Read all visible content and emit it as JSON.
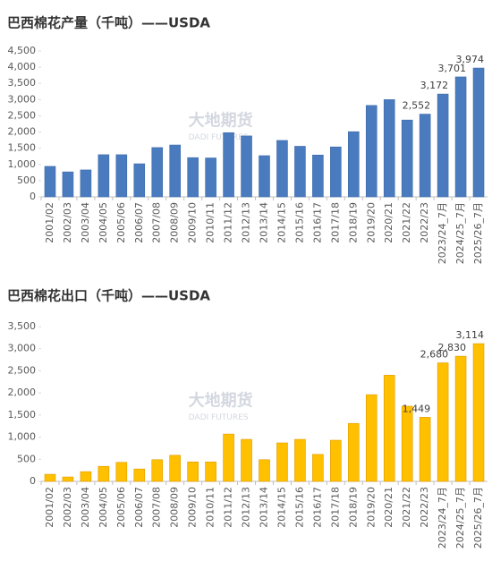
{
  "chart_data": [
    {
      "type": "bar",
      "title": "巴西棉花产量（千吨）——USDA",
      "watermark": "大地期货",
      "watermark_sub": "DADI FUTURES",
      "categories": [
        "2001/02",
        "2002/03",
        "2003/04",
        "2004/05",
        "2005/06",
        "2006/07",
        "2007/08",
        "2008/09",
        "2009/10",
        "2010/11",
        "2011/12",
        "2012/13",
        "2013/14",
        "2014/15",
        "2015/16",
        "2016/17",
        "2017/18",
        "2018/19",
        "2019/20",
        "2020/21",
        "2021/22",
        "2022/23",
        "2023/24_7月",
        "2024/25_7月",
        "2025/26_7月"
      ],
      "values": [
        940,
        770,
        830,
        1300,
        1300,
        1020,
        1520,
        1600,
        1210,
        1200,
        1980,
        1880,
        1270,
        1740,
        1560,
        1290,
        1540,
        2010,
        2820,
        3000,
        2370,
        2552,
        3172,
        3701,
        3974
      ],
      "value_labels": [
        null,
        null,
        null,
        null,
        null,
        null,
        null,
        null,
        null,
        null,
        null,
        null,
        null,
        null,
        null,
        null,
        null,
        null,
        null,
        null,
        null,
        "2,552",
        "3,172",
        "3,701",
        "3,974"
      ],
      "color": "#4a7bbf",
      "stroke": "#3d6aa8",
      "ylim": [
        0,
        4500
      ],
      "yticks": [
        0,
        {
          "value": 500,
          "label": "500"
        },
        {
          "value": 1000,
          "label": "1,000"
        },
        {
          "value": 1500,
          "label": "1,500"
        },
        {
          "value": 2000,
          "label": "2,000"
        },
        {
          "value": 2500,
          "label": "2,500"
        },
        {
          "value": 3000,
          "label": "3,000"
        },
        {
          "value": 3500,
          "label": "3,500"
        },
        {
          "value": 4000,
          "label": "4,000"
        },
        {
          "value": 4500,
          "label": "4,500"
        }
      ]
    },
    {
      "type": "bar",
      "title": "巴西棉花出口（千吨）——USDA",
      "watermark": "大地期货",
      "watermark_sub": "DADI FUTURES",
      "categories": [
        "2001/02",
        "2002/03",
        "2003/04",
        "2004/05",
        "2005/06",
        "2006/07",
        "2007/08",
        "2008/09",
        "2009/10",
        "2010/11",
        "2011/12",
        "2012/13",
        "2013/14",
        "2014/15",
        "2015/16",
        "2016/17",
        "2017/18",
        "2018/19",
        "2019/20",
        "2020/21",
        "2021/22",
        "2022/23",
        "2023/24_7月",
        "2024/25_7月",
        "2025/26_7月"
      ],
      "values": [
        160,
        100,
        220,
        340,
        430,
        280,
        490,
        590,
        440,
        440,
        1070,
        950,
        490,
        870,
        950,
        610,
        930,
        1310,
        1960,
        2400,
        1700,
        1449,
        2680,
        2830,
        3114
      ],
      "value_labels": [
        null,
        null,
        null,
        null,
        null,
        null,
        null,
        null,
        null,
        null,
        null,
        null,
        null,
        null,
        null,
        null,
        null,
        null,
        null,
        null,
        null,
        "1,449",
        "2,680",
        "2,830",
        "3,114"
      ],
      "color": "#ffc000",
      "stroke": "#e09a00",
      "ylim": [
        0,
        3500
      ],
      "yticks": [
        0,
        {
          "value": 500,
          "label": "500"
        },
        {
          "value": 1000,
          "label": "1,000"
        },
        {
          "value": 1500,
          "label": "1,500"
        },
        {
          "value": 2000,
          "label": "2,000"
        },
        {
          "value": 2500,
          "label": "2,500"
        },
        {
          "value": 3000,
          "label": "3,000"
        },
        {
          "value": 3500,
          "label": "3,500"
        }
      ]
    }
  ]
}
